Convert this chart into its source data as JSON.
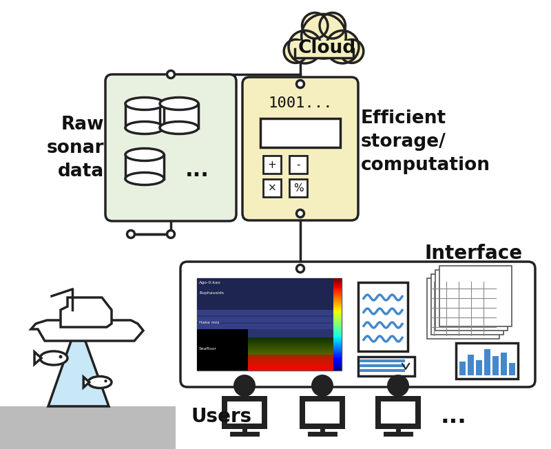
{
  "bg_color": "#ffffff",
  "cloud_color": "#f5efc0",
  "cloud_edge": "#222222",
  "db_box_color": "#e8f0e0",
  "db_box_edge": "#222222",
  "calc_box_color": "#f5efc0",
  "calc_box_edge": "#222222",
  "iface_box_color": "#ffffff",
  "iface_box_edge": "#222222",
  "conn_color": "#222222",
  "text_color": "#111111",
  "beam_color": "#c8e8f8",
  "floor_color": "#bbbbbb",
  "fish_color": "#111111",
  "bar_color": "#4488cc",
  "wave_color": "#4488cc",
  "label_cloud": "Cloud",
  "label_raw": "Raw\nsonar\ndata",
  "label_1001": "1001...",
  "label_efficient": "Efficient\nstorage/\ncomputation",
  "label_interface": "Interface",
  "label_users": "Users",
  "lw": 2.5
}
